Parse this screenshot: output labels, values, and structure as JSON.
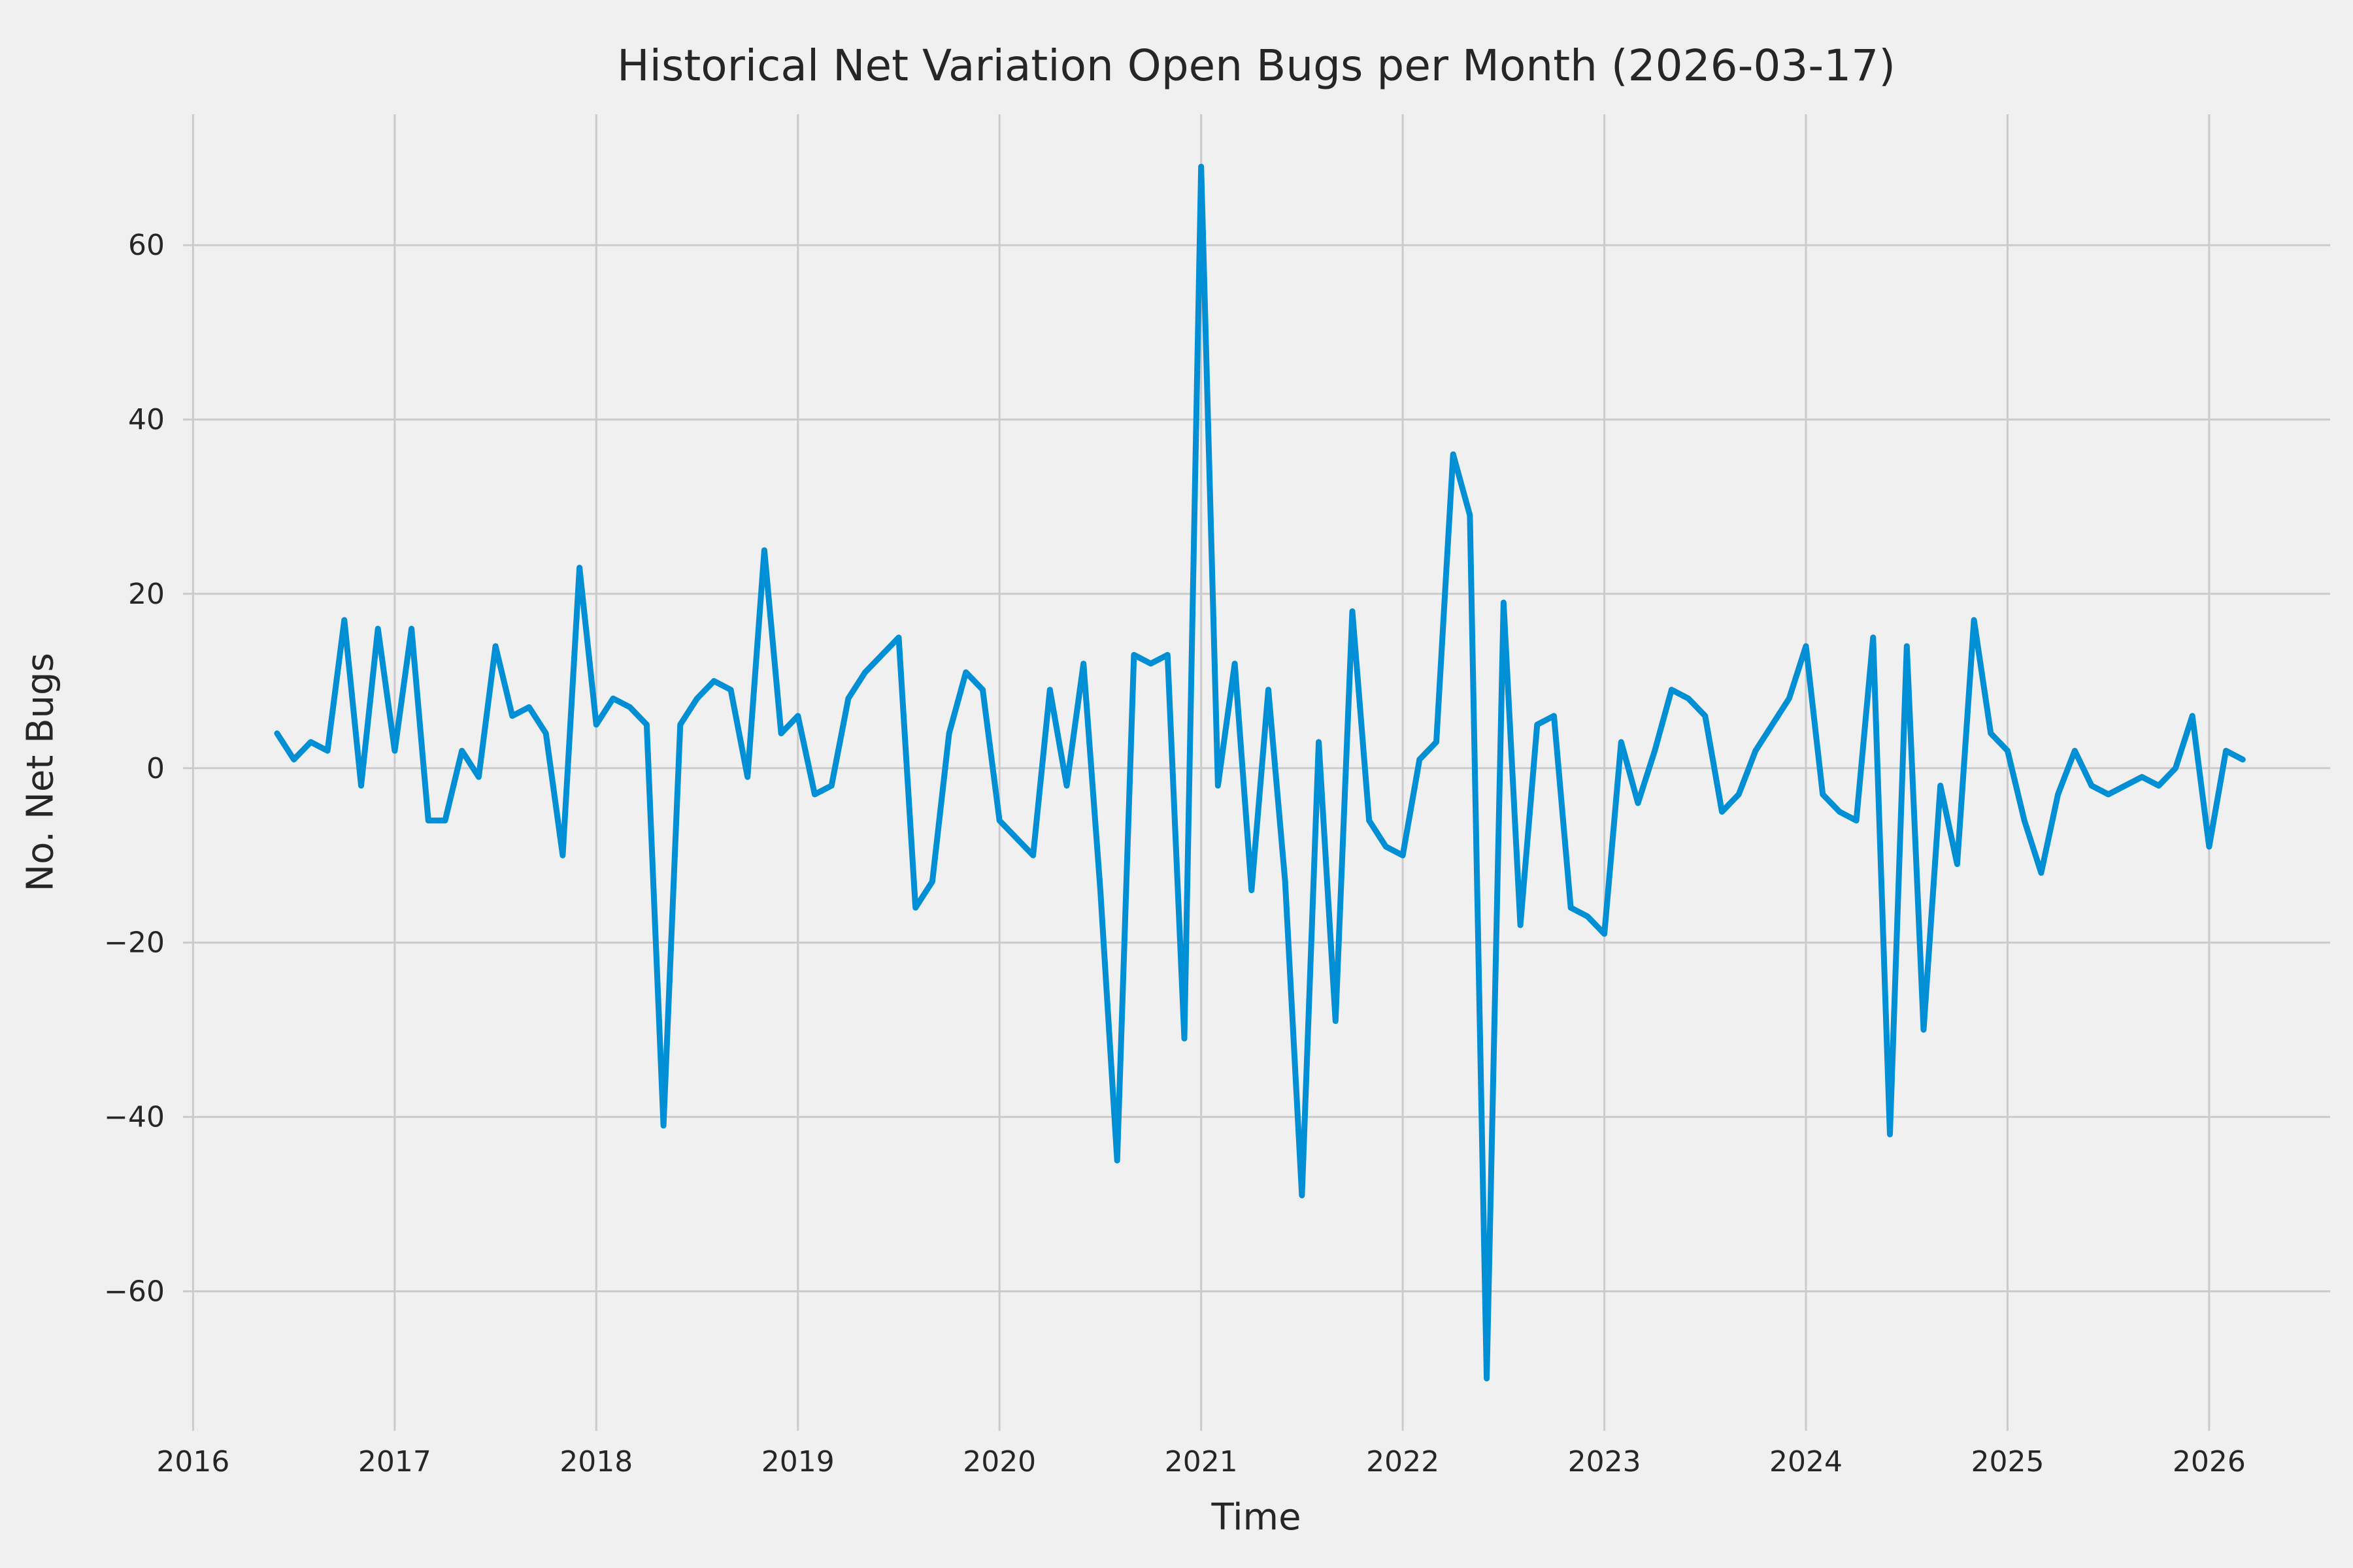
{
  "page": {
    "background_color": "#f0f0f0"
  },
  "chart_data": {
    "type": "line",
    "title": "Historical Net Variation Open Bugs per Month (2026-03-17)",
    "xlabel": "Time",
    "ylabel": "No. Net Bugs",
    "style": "fivethirtyeight-like",
    "legend": false,
    "grid": true,
    "grid_color": "#cbcbcb",
    "background_color": "#f0f0f0",
    "line_color": "#008fd5",
    "line_width": 9,
    "tick_color": "#262626",
    "xlim": [
      2015.95,
      2026.6
    ],
    "ylim": [
      -76,
      75
    ],
    "x_ticks": [
      {
        "value": 2016,
        "label": "2016"
      },
      {
        "value": 2017,
        "label": "2017"
      },
      {
        "value": 2018,
        "label": "2018"
      },
      {
        "value": 2019,
        "label": "2019"
      },
      {
        "value": 2020,
        "label": "2020"
      },
      {
        "value": 2021,
        "label": "2021"
      },
      {
        "value": 2022,
        "label": "2022"
      },
      {
        "value": 2023,
        "label": "2023"
      },
      {
        "value": 2024,
        "label": "2024"
      },
      {
        "value": 2025,
        "label": "2025"
      },
      {
        "value": 2026,
        "label": "2026"
      }
    ],
    "y_ticks": [
      {
        "value": -60,
        "label": "−60"
      },
      {
        "value": -40,
        "label": "−40"
      },
      {
        "value": -20,
        "label": "−20"
      },
      {
        "value": 0,
        "label": "0"
      },
      {
        "value": 20,
        "label": "20"
      },
      {
        "value": 40,
        "label": "40"
      },
      {
        "value": 60,
        "label": "60"
      }
    ],
    "series": [
      {
        "name": "net-variation-open-bugs",
        "cadence": "monthly",
        "x_unit": "decimal_year",
        "x_start_year": 2016,
        "x_start_month": 6,
        "x_end_year": 2026,
        "x_end_month": 3,
        "values": [
          4,
          1,
          3,
          2,
          17,
          -2,
          16,
          2,
          16,
          -6,
          -6,
          2,
          -1,
          14,
          6,
          7,
          4,
          -10,
          23,
          5,
          8,
          7,
          5,
          -41,
          5,
          8,
          10,
          9,
          -1,
          25,
          4,
          6,
          -3,
          -2,
          8,
          11,
          13,
          15,
          -16,
          -13,
          4,
          11,
          9,
          -6,
          -8,
          -10,
          9,
          -2,
          12,
          -14,
          -45,
          13,
          12,
          13,
          -31,
          69,
          -2,
          12,
          -14,
          9,
          -13,
          -49,
          3,
          -29,
          18,
          -6,
          -9,
          -10,
          1,
          3,
          36,
          29,
          -70,
          19,
          -18,
          5,
          6,
          -16,
          -17,
          -19,
          3,
          -4,
          2,
          9,
          8,
          6,
          -5,
          -3,
          2,
          5,
          8,
          14,
          -3,
          -5,
          -6,
          15,
          -42,
          14,
          -30,
          -2,
          -11,
          17,
          4,
          2,
          -6,
          -12,
          -3,
          2,
          -2,
          -3,
          -2,
          -1,
          -2,
          0,
          6,
          -9,
          2,
          1
        ]
      }
    ]
  }
}
